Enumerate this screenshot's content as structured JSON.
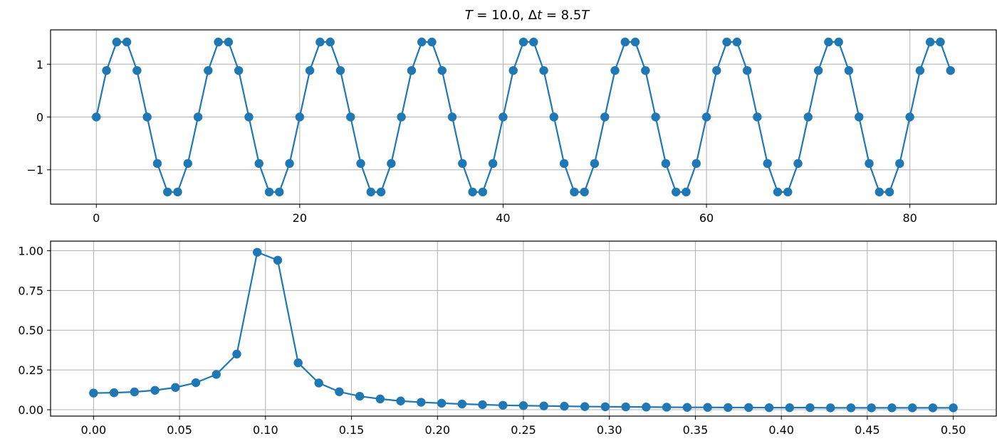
{
  "figure_title": "T = 10.0, Δt = 8.5T",
  "title_parts": {
    "t_sym": "T",
    "t_val": " = 10.0, ",
    "dt_sym": "Δ",
    "dt_t": "t",
    "dt_eq": " = 8.5",
    "dt_T": "T"
  },
  "colors": {
    "series": "#1f77b4",
    "grid": "#b0b0b0"
  },
  "chart_data": [
    {
      "type": "line",
      "markers": true,
      "grid": true,
      "xlim": [
        -4.5,
        88.5
      ],
      "ylim": [
        -1.65,
        1.65
      ],
      "xticks": [
        0,
        20,
        40,
        60,
        80
      ],
      "xtick_labels": [
        "0",
        "20",
        "40",
        "60",
        "80"
      ],
      "yticks": [
        1,
        0,
        -1
      ],
      "ytick_labels": [
        "1",
        "0",
        "−1"
      ],
      "x": [
        0,
        1,
        2,
        3,
        4,
        5,
        6,
        7,
        8,
        9,
        10,
        11,
        12,
        13,
        14,
        15,
        16,
        17,
        18,
        19,
        20,
        21,
        22,
        23,
        24,
        25,
        26,
        27,
        28,
        29,
        30,
        31,
        32,
        33,
        34,
        35,
        36,
        37,
        38,
        39,
        40,
        41,
        42,
        43,
        44,
        45,
        46,
        47,
        48,
        49,
        50,
        51,
        52,
        53,
        54,
        55,
        56,
        57,
        58,
        59,
        60,
        61,
        62,
        63,
        64,
        65,
        66,
        67,
        68,
        69,
        70,
        71,
        72,
        73,
        74,
        75,
        76,
        77,
        78,
        79,
        80,
        81,
        82,
        83,
        84
      ],
      "y": [
        0,
        0.88,
        1.42,
        1.42,
        0.88,
        0,
        -0.88,
        -1.42,
        -1.42,
        -0.88,
        0,
        0.88,
        1.42,
        1.42,
        0.88,
        0,
        -0.88,
        -1.42,
        -1.42,
        -0.88,
        0,
        0.88,
        1.42,
        1.42,
        0.88,
        0,
        -0.88,
        -1.42,
        -1.42,
        -0.88,
        0,
        0.88,
        1.42,
        1.42,
        0.88,
        0,
        -0.88,
        -1.42,
        -1.42,
        -0.88,
        0,
        0.88,
        1.42,
        1.42,
        0.88,
        0,
        -0.88,
        -1.42,
        -1.42,
        -0.88,
        0,
        0.88,
        1.42,
        1.42,
        0.88,
        0,
        -0.88,
        -1.42,
        -1.42,
        -0.88,
        0,
        0.88,
        1.42,
        1.42,
        0.88,
        0,
        -0.88,
        -1.42,
        -1.42,
        -0.88,
        0,
        0.88,
        1.42,
        1.42,
        0.88,
        0,
        -0.88,
        -1.42,
        -1.42,
        -0.88,
        0,
        0.88,
        1.42,
        1.42,
        0.88
      ]
    },
    {
      "type": "line",
      "markers": true,
      "grid": true,
      "xlim": [
        -0.025,
        0.525
      ],
      "ylim": [
        -0.04,
        1.06
      ],
      "xticks": [
        0,
        0.05,
        0.1,
        0.15,
        0.2,
        0.25,
        0.3,
        0.35,
        0.4,
        0.45,
        0.5
      ],
      "xtick_labels": [
        "0.00",
        "0.05",
        "0.10",
        "0.15",
        "0.20",
        "0.25",
        "0.30",
        "0.35",
        "0.40",
        "0.45",
        "0.50"
      ],
      "yticks": [
        1.0,
        0.75,
        0.5,
        0.25,
        0.0
      ],
      "ytick_labels": [
        "1.00",
        "0.75",
        "0.50",
        "0.25",
        "0.00"
      ],
      "x": [
        0,
        0.0119,
        0.0238,
        0.0357,
        0.0476,
        0.0595,
        0.0714,
        0.0833,
        0.0952,
        0.1071,
        0.119,
        0.131,
        0.1429,
        0.1548,
        0.1667,
        0.1786,
        0.1905,
        0.2024,
        0.2143,
        0.2262,
        0.2381,
        0.25,
        0.2619,
        0.2738,
        0.2857,
        0.2976,
        0.3095,
        0.3214,
        0.3333,
        0.3452,
        0.3571,
        0.369,
        0.381,
        0.3929,
        0.4048,
        0.4167,
        0.4286,
        0.4405,
        0.4524,
        0.4643,
        0.4762,
        0.4881,
        0.5
      ],
      "y": [
        0.105,
        0.107,
        0.112,
        0.122,
        0.14,
        0.17,
        0.222,
        0.35,
        0.99,
        0.94,
        0.295,
        0.168,
        0.113,
        0.085,
        0.068,
        0.055,
        0.047,
        0.041,
        0.036,
        0.032,
        0.028,
        0.026,
        0.024,
        0.022,
        0.02,
        0.019,
        0.018,
        0.017,
        0.016,
        0.015,
        0.015,
        0.014,
        0.014,
        0.013,
        0.013,
        0.013,
        0.012,
        0.012,
        0.012,
        0.012,
        0.012,
        0.012,
        0.012
      ]
    }
  ]
}
